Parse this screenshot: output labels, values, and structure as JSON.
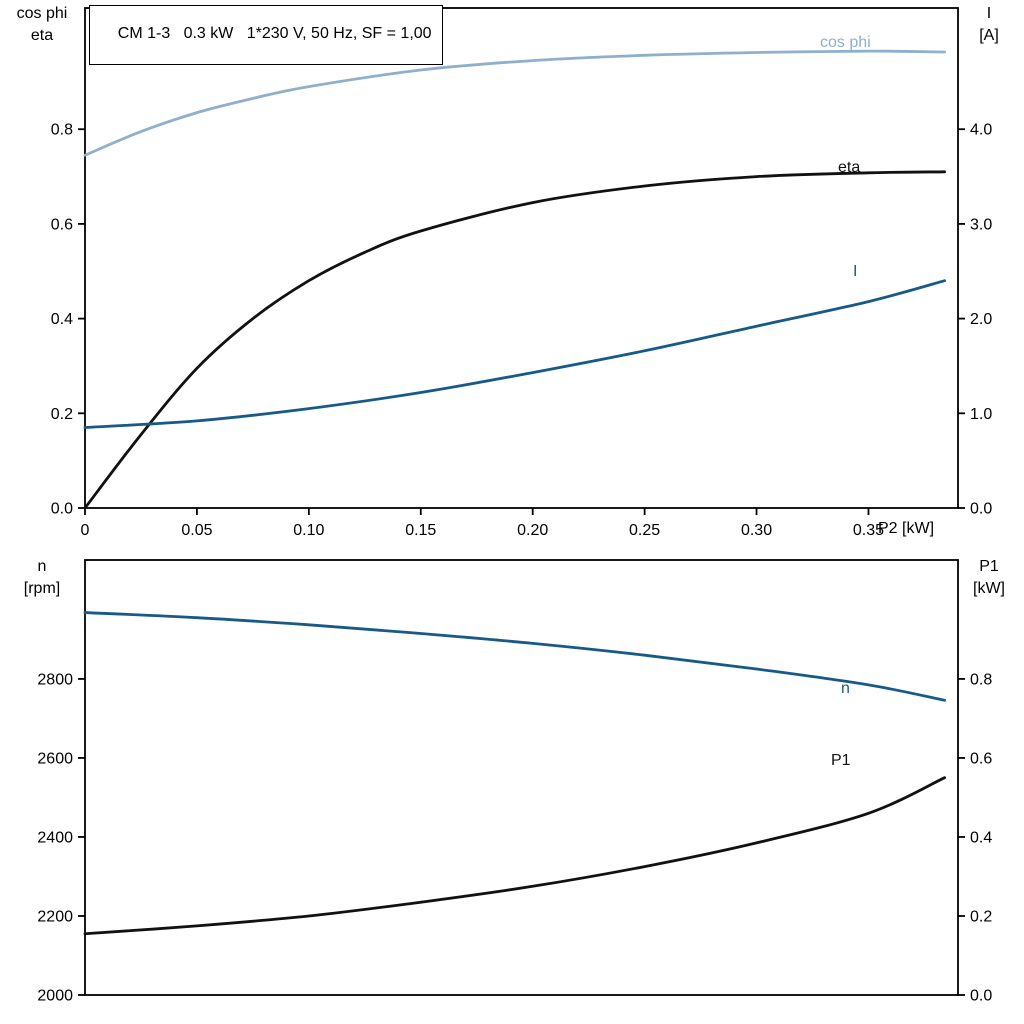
{
  "title": "CM 1-3   0.3 kW   1*230 V, 50 Hz, SF = 1,00",
  "colors": {
    "light_blue": "#8fafca",
    "dark_blue": "#175a87",
    "black": "#111111",
    "axis": "#000000"
  },
  "chart_data": [
    {
      "type": "line",
      "grid": false,
      "legend_position": "inline-labels",
      "x_axis": {
        "label": "P2 [kW]",
        "min": 0,
        "max": 0.39,
        "tick_values": [
          0,
          0.05,
          0.1,
          0.15,
          0.2,
          0.25,
          0.3,
          0.35
        ],
        "tick_labels": [
          "0",
          "0.05",
          "0.10",
          "0.15",
          "0.20",
          "0.25",
          "0.30",
          "0.35"
        ]
      },
      "y_left": {
        "label_lines": [
          "cos phi",
          "eta"
        ],
        "min": 0,
        "max": 1.056,
        "tick_values": [
          0,
          0.2,
          0.4,
          0.6,
          0.8
        ],
        "tick_labels": [
          "0.0",
          "0.2",
          "0.4",
          "0.6",
          "0.8"
        ]
      },
      "y_right": {
        "label_lines": [
          "I",
          "[A]"
        ],
        "min": 0,
        "max": 5.28,
        "tick_values": [
          0,
          1,
          2,
          3,
          4
        ],
        "tick_labels": [
          "0.0",
          "1.0",
          "2.0",
          "3.0",
          "4.0"
        ]
      },
      "series": [
        {
          "name": "cos phi",
          "axis": "left",
          "color": "#8fafca",
          "x": [
            0,
            0.025,
            0.05,
            0.075,
            0.1,
            0.15,
            0.2,
            0.25,
            0.3,
            0.35,
            0.384
          ],
          "values": [
            0.745,
            0.795,
            0.835,
            0.865,
            0.89,
            0.925,
            0.945,
            0.956,
            0.962,
            0.965,
            0.963
          ]
        },
        {
          "name": "eta",
          "axis": "left",
          "color": "#111111",
          "x": [
            0,
            0.025,
            0.05,
            0.075,
            0.1,
            0.125,
            0.15,
            0.2,
            0.25,
            0.3,
            0.35,
            0.384
          ],
          "values": [
            0,
            0.155,
            0.295,
            0.4,
            0.48,
            0.54,
            0.585,
            0.645,
            0.68,
            0.7,
            0.708,
            0.71
          ]
        },
        {
          "name": "I",
          "axis": "right",
          "color": "#175a87",
          "x": [
            0,
            0.05,
            0.1,
            0.15,
            0.2,
            0.25,
            0.3,
            0.35,
            0.384
          ],
          "values": [
            0.85,
            0.92,
            1.05,
            1.22,
            1.43,
            1.66,
            1.92,
            2.18,
            2.4
          ]
        }
      ]
    },
    {
      "type": "line",
      "grid": false,
      "legend_position": "inline-labels",
      "x_axis": {
        "label": "",
        "min": 0,
        "max": 0.39,
        "tick_values": [],
        "tick_labels": []
      },
      "y_left": {
        "label_lines": [
          "n",
          "[rpm]"
        ],
        "min": 2000,
        "max": 3101,
        "tick_values": [
          2000,
          2200,
          2400,
          2600,
          2800
        ],
        "tick_labels": [
          "2000",
          "2200",
          "2400",
          "2600",
          "2800"
        ]
      },
      "y_right": {
        "label_lines": [
          "P1",
          "[kW]"
        ],
        "min": 0,
        "max": 1.101,
        "tick_values": [
          0,
          0.2,
          0.4,
          0.6,
          0.8
        ],
        "tick_labels": [
          "0.0",
          "0.2",
          "0.4",
          "0.6",
          "0.8"
        ]
      },
      "series": [
        {
          "name": "n",
          "axis": "left",
          "color": "#175a87",
          "x": [
            0,
            0.05,
            0.1,
            0.15,
            0.2,
            0.25,
            0.3,
            0.35,
            0.384
          ],
          "values": [
            2968,
            2955,
            2937,
            2915,
            2890,
            2860,
            2825,
            2785,
            2746
          ]
        },
        {
          "name": "P1",
          "axis": "right",
          "color": "#111111",
          "x": [
            0,
            0.05,
            0.1,
            0.15,
            0.2,
            0.25,
            0.3,
            0.35,
            0.384
          ],
          "values": [
            0.155,
            0.175,
            0.2,
            0.235,
            0.275,
            0.325,
            0.385,
            0.46,
            0.55
          ]
        }
      ]
    }
  ]
}
